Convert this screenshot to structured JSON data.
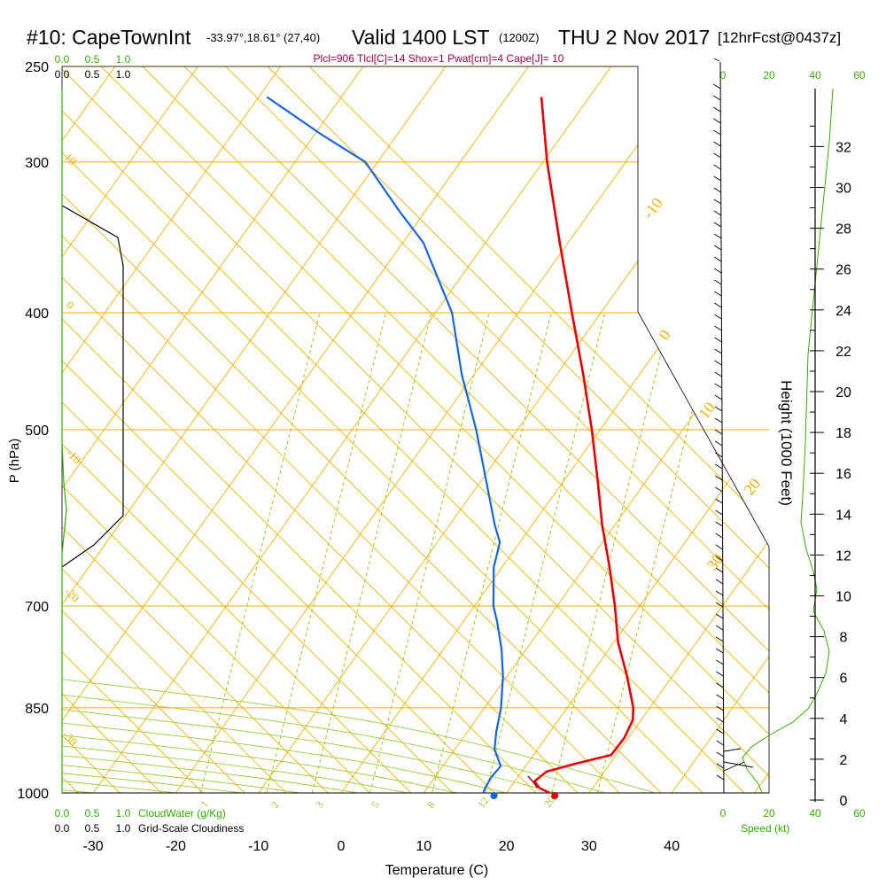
{
  "title": {
    "station": "#10: CapeTownInt",
    "coords": "-33.97°,18.61° (27,40)",
    "valid": "Valid 1400 LST",
    "zulu": "(1200Z)",
    "date": "THU 2 Nov 2017",
    "forecast": "[12hrFcst@0437z]"
  },
  "indices": "Plcl=906 Tlcl[C]=14 Shox=1 Pwat[cm]=4 Cape[J]= 10",
  "colors": {
    "temperature": "#e60000",
    "dewpoint": "#1565e0",
    "isotherm": "#f0b000",
    "dry_adiabat": "#f0b000",
    "moist_adiabat": "#9acd32",
    "mixing_ratio": "#8fc800",
    "green_text": "#2fb000",
    "indices_text": "#a0004a"
  },
  "chart_data": {
    "type": "skew-t",
    "xlabel": "Temperature (C)",
    "ylabel": "P (hPa)",
    "right_axis_label": "Height (1000 Feet)",
    "x_ticks": [
      "-30",
      "-20",
      "-10",
      "0",
      "10",
      "20",
      "30",
      "40"
    ],
    "pressure_ticks": [
      "250",
      "300",
      "400",
      "500",
      "700",
      "850",
      "1000"
    ],
    "height_ticks": [
      "0",
      "2",
      "4",
      "6",
      "8",
      "10",
      "12",
      "14",
      "16",
      "18",
      "20",
      "22",
      "24",
      "26",
      "28",
      "30",
      "32"
    ],
    "temperature_profile": [
      {
        "p": 1000,
        "t": 25.2
      },
      {
        "p": 990,
        "t": 23.5
      },
      {
        "p": 978,
        "t": 22.4
      },
      {
        "p": 960,
        "t": 23.0
      },
      {
        "p": 945,
        "t": 26.0
      },
      {
        "p": 930,
        "t": 29.4
      },
      {
        "p": 900,
        "t": 29.5
      },
      {
        "p": 870,
        "t": 29.0
      },
      {
        "p": 850,
        "t": 28.0
      },
      {
        "p": 800,
        "t": 24.5
      },
      {
        "p": 750,
        "t": 20.5
      },
      {
        "p": 700,
        "t": 17.0
      },
      {
        "p": 650,
        "t": 13.0
      },
      {
        "p": 600,
        "t": 8.5
      },
      {
        "p": 550,
        "t": 4.0
      },
      {
        "p": 500,
        "t": -1.0
      },
      {
        "p": 450,
        "t": -6.8
      },
      {
        "p": 400,
        "t": -13.5
      },
      {
        "p": 350,
        "t": -21.0
      },
      {
        "p": 300,
        "t": -29.5
      },
      {
        "p": 265,
        "t": -35.8
      }
    ],
    "dewpoint_profile": [
      {
        "p": 1000,
        "t": 17.2
      },
      {
        "p": 990,
        "t": 17.0
      },
      {
        "p": 970,
        "t": 16.8
      },
      {
        "p": 950,
        "t": 17.0
      },
      {
        "p": 920,
        "t": 14.8
      },
      {
        "p": 890,
        "t": 13.5
      },
      {
        "p": 850,
        "t": 12.0
      },
      {
        "p": 800,
        "t": 9.5
      },
      {
        "p": 760,
        "t": 7.0
      },
      {
        "p": 720,
        "t": 4.0
      },
      {
        "p": 700,
        "t": 2.3
      },
      {
        "p": 650,
        "t": -1.0
      },
      {
        "p": 620,
        "t": -2.4
      },
      {
        "p": 600,
        "t": -4.5
      },
      {
        "p": 550,
        "t": -9.5
      },
      {
        "p": 500,
        "t": -15.0
      },
      {
        "p": 450,
        "t": -21.5
      },
      {
        "p": 400,
        "t": -28.0
      },
      {
        "p": 350,
        "t": -37.5
      },
      {
        "p": 330,
        "t": -43.0
      },
      {
        "p": 300,
        "t": -51.5
      },
      {
        "p": 285,
        "t": -59.0
      },
      {
        "p": 265,
        "t": -69.0
      }
    ],
    "isotherm_labels": [
      "-10",
      "0",
      "10",
      "20",
      "30"
    ],
    "dry_adiabat_labels": [
      "10",
      "0",
      "-10",
      "-20",
      "-30"
    ],
    "mixing_ratio_labels": [
      "1",
      "2",
      "3",
      "5",
      "8",
      "12",
      "20"
    ],
    "cloud_water_axis": {
      "label": "CloudWater (g/Kg)",
      "ticks": [
        "0.0",
        "0.5",
        "1.0"
      ]
    },
    "cloudiness_axis": {
      "label": "Grid-Scale Cloudiness",
      "ticks": [
        "0.0",
        "0.5",
        "1.0"
      ]
    },
    "wind_speed_axis": {
      "label": "Speed (kt)",
      "ticks": [
        "0",
        "20",
        "40",
        "60"
      ]
    }
  }
}
